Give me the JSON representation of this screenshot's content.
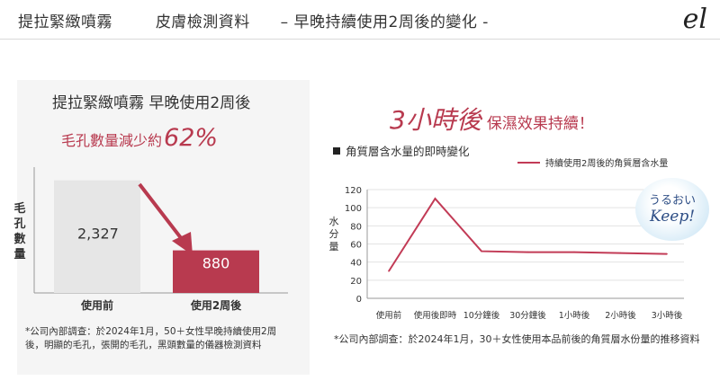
{
  "header": {
    "part1": "提拉緊緻噴霧",
    "part2": "皮膚檢測資料",
    "part3": "– 早晚持續使用2周後的變化 -",
    "logo": "el"
  },
  "left": {
    "title": "提拉緊緻噴霧 早晚使用2周後",
    "pore_text": "毛孔數量減少約",
    "pore_pct": "62%",
    "note": "*公司內部調查：於2024年1月，50＋女性早晚持續使用2周後，明顯的毛孔，張開的毛孔，黑頭數量的儀器檢測資料"
  },
  "right": {
    "headline_big": "3小時後",
    "headline_small": "保濕效果持續！",
    "chart_heading": "角質層含水量的即時變化",
    "badge_line1": "うるおい",
    "badge_line2": "Keep!",
    "note": "*公司內部調查：於2024年1月，30＋女性使用本品前後的角質層水份量的推移資料"
  },
  "colors": {
    "accent": "#b83a4f",
    "bar_before": "#e6e6e6",
    "line": "#c23b56"
  },
  "chart_data": [
    {
      "type": "bar",
      "categories": [
        "使用前",
        "使用2周後"
      ],
      "values": [
        2327,
        880
      ],
      "value_labels": [
        "2,327",
        "880"
      ],
      "ylabel": "毛孔數量",
      "ylim": [
        0,
        2600
      ]
    },
    {
      "type": "line",
      "categories": [
        "使用前",
        "使用後即時",
        "10分鐘後",
        "30分鐘後",
        "1小時後",
        "2小時後",
        "3小時後"
      ],
      "series": [
        {
          "name": "持續使用2周後的角質層含水量",
          "values": [
            30,
            110,
            52,
            51,
            51,
            50,
            49
          ]
        }
      ],
      "ylabel": "水分量",
      "yticks": [
        0,
        20,
        40,
        60,
        80,
        100,
        120
      ],
      "ylim": [
        0,
        120
      ],
      "grid": true,
      "legend": "top-right"
    }
  ]
}
